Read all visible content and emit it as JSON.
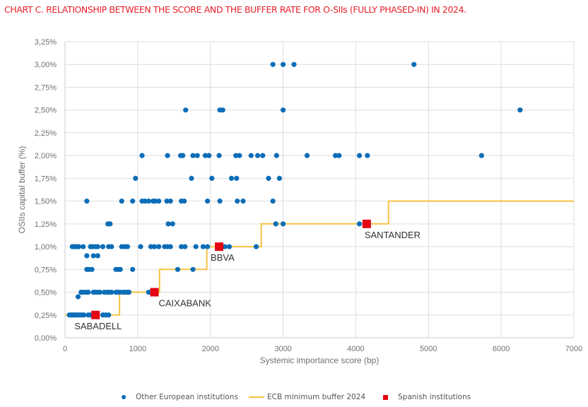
{
  "title": "CHART C. RELATIONSHIP BETWEEN THE SCORE AND THE BUFFER RATE FOR O-SIIs (FULLY PHASED-IN) IN 2024.",
  "colors": {
    "title": "#e8202a",
    "other": "#0b6db7",
    "ecb": "#f5c242",
    "spanish": "#e40613",
    "grid": "#dddddd"
  },
  "legend": {
    "other": "Other European institutions",
    "ecb": "ECB minimum buffer 2024",
    "spanish": "Spanish institutions"
  },
  "chart_data": {
    "type": "scatter",
    "title": "CHART C. RELATIONSHIP BETWEEN THE SCORE AND THE BUFFER RATE FOR O-SIIs (FULLY PHASED-IN) IN 2024.",
    "xlabel": "Systemic importance score (bp)",
    "ylabel": "OSIIs capital buffer (%)",
    "xlim": [
      0,
      7000
    ],
    "ylim": [
      0,
      3.25
    ],
    "x_ticks": [
      0,
      1000,
      2000,
      3000,
      4000,
      5000,
      6000,
      7000
    ],
    "x_tick_labels": [
      "0",
      "1000",
      "2000",
      "3000",
      "4000",
      "5000",
      "6000",
      "7000"
    ],
    "y_ticks": [
      0,
      0.25,
      0.5,
      0.75,
      1.0,
      1.25,
      1.5,
      1.75,
      2.0,
      2.25,
      2.5,
      2.75,
      3.0,
      3.25
    ],
    "y_tick_labels": [
      "0,00%",
      "0,25%",
      "0,50%",
      "0,75%",
      "1,00%",
      "1,25%",
      "1,50%",
      "1,75%",
      "2,00%",
      "2,25%",
      "2,50%",
      "2,75%",
      "3,00%",
      "3,25%"
    ],
    "grid": true,
    "legend_position": "bottom",
    "series": [
      {
        "name": "Other European institutions",
        "marker": "circle",
        "points": [
          [
            60,
            0.25
          ],
          [
            90,
            0.25
          ],
          [
            110,
            0.25
          ],
          [
            130,
            0.25
          ],
          [
            150,
            0.25
          ],
          [
            170,
            0.25
          ],
          [
            200,
            0.25
          ],
          [
            230,
            0.25
          ],
          [
            260,
            0.25
          ],
          [
            320,
            0.25
          ],
          [
            350,
            0.25
          ],
          [
            520,
            0.25
          ],
          [
            560,
            0.25
          ],
          [
            600,
            0.25
          ],
          [
            180,
            0.45
          ],
          [
            220,
            0.5
          ],
          [
            250,
            0.5
          ],
          [
            290,
            0.5
          ],
          [
            320,
            0.5
          ],
          [
            390,
            0.5
          ],
          [
            420,
            0.5
          ],
          [
            450,
            0.5
          ],
          [
            480,
            0.5
          ],
          [
            540,
            0.5
          ],
          [
            580,
            0.5
          ],
          [
            610,
            0.5
          ],
          [
            640,
            0.5
          ],
          [
            700,
            0.5
          ],
          [
            730,
            0.5
          ],
          [
            760,
            0.5
          ],
          [
            800,
            0.5
          ],
          [
            830,
            0.5
          ],
          [
            860,
            0.5
          ],
          [
            880,
            0.5
          ],
          [
            1150,
            0.5
          ],
          [
            300,
            0.75
          ],
          [
            330,
            0.75
          ],
          [
            370,
            0.75
          ],
          [
            700,
            0.75
          ],
          [
            730,
            0.75
          ],
          [
            760,
            0.75
          ],
          [
            930,
            0.75
          ],
          [
            1550,
            0.75
          ],
          [
            1760,
            0.75
          ],
          [
            300,
            0.9
          ],
          [
            390,
            0.9
          ],
          [
            450,
            0.9
          ],
          [
            100,
            1.0
          ],
          [
            120,
            1.0
          ],
          [
            140,
            1.0
          ],
          [
            160,
            1.0
          ],
          [
            190,
            1.0
          ],
          [
            250,
            1.0
          ],
          [
            350,
            1.0
          ],
          [
            380,
            1.0
          ],
          [
            420,
            1.0
          ],
          [
            450,
            1.0
          ],
          [
            520,
            1.0
          ],
          [
            600,
            1.0
          ],
          [
            640,
            1.0
          ],
          [
            780,
            1.0
          ],
          [
            820,
            1.0
          ],
          [
            860,
            1.0
          ],
          [
            1040,
            1.0
          ],
          [
            1180,
            1.0
          ],
          [
            1230,
            1.0
          ],
          [
            1290,
            1.0
          ],
          [
            1370,
            1.0
          ],
          [
            1410,
            1.0
          ],
          [
            1450,
            1.0
          ],
          [
            1600,
            1.0
          ],
          [
            1650,
            1.0
          ],
          [
            1800,
            1.0
          ],
          [
            1900,
            1.0
          ],
          [
            1960,
            1.0
          ],
          [
            2200,
            1.0
          ],
          [
            2260,
            1.0
          ],
          [
            2630,
            1.0
          ],
          [
            590,
            1.25
          ],
          [
            620,
            1.25
          ],
          [
            1420,
            1.25
          ],
          [
            1480,
            1.25
          ],
          [
            2900,
            1.25
          ],
          [
            3000,
            1.25
          ],
          [
            4050,
            1.25
          ],
          [
            300,
            1.5
          ],
          [
            780,
            1.5
          ],
          [
            930,
            1.5
          ],
          [
            1060,
            1.5
          ],
          [
            1100,
            1.5
          ],
          [
            1150,
            1.5
          ],
          [
            1210,
            1.5
          ],
          [
            1240,
            1.5
          ],
          [
            1290,
            1.5
          ],
          [
            1400,
            1.5
          ],
          [
            1450,
            1.5
          ],
          [
            1600,
            1.5
          ],
          [
            1640,
            1.5
          ],
          [
            1960,
            1.5
          ],
          [
            2130,
            1.5
          ],
          [
            2370,
            1.5
          ],
          [
            2450,
            1.5
          ],
          [
            2860,
            1.5
          ],
          [
            970,
            1.75
          ],
          [
            1740,
            1.75
          ],
          [
            2020,
            1.75
          ],
          [
            2290,
            1.75
          ],
          [
            2360,
            1.75
          ],
          [
            2800,
            1.75
          ],
          [
            2950,
            1.75
          ],
          [
            1060,
            2.0
          ],
          [
            1410,
            2.0
          ],
          [
            1590,
            2.0
          ],
          [
            1620,
            2.0
          ],
          [
            1760,
            2.0
          ],
          [
            1820,
            2.0
          ],
          [
            1930,
            2.0
          ],
          [
            1980,
            2.0
          ],
          [
            2120,
            2.0
          ],
          [
            2350,
            2.0
          ],
          [
            2400,
            2.0
          ],
          [
            2560,
            2.0
          ],
          [
            2650,
            2.0
          ],
          [
            2720,
            2.0
          ],
          [
            2910,
            2.0
          ],
          [
            3330,
            2.0
          ],
          [
            3720,
            2.0
          ],
          [
            3770,
            2.0
          ],
          [
            4050,
            2.0
          ],
          [
            4160,
            2.0
          ],
          [
            5730,
            2.0
          ],
          [
            1660,
            2.5
          ],
          [
            2130,
            2.5
          ],
          [
            2170,
            2.5
          ],
          [
            3000,
            2.5
          ],
          [
            6260,
            2.5
          ],
          [
            2860,
            3.0
          ],
          [
            3000,
            3.0
          ],
          [
            3150,
            3.0
          ],
          [
            4800,
            3.0
          ]
        ]
      },
      {
        "name": "ECB minimum buffer 2024",
        "type": "step",
        "points": [
          [
            0,
            0.25
          ],
          [
            750,
            0.25
          ],
          [
            750,
            0.5
          ],
          [
            1300,
            0.5
          ],
          [
            1300,
            0.75
          ],
          [
            1950,
            0.75
          ],
          [
            1950,
            1.0
          ],
          [
            2700,
            1.0
          ],
          [
            2700,
            1.25
          ],
          [
            4450,
            1.25
          ],
          [
            4450,
            1.5
          ],
          [
            7000,
            1.5
          ]
        ]
      },
      {
        "name": "Spanish institutions",
        "marker": "square",
        "points": [
          {
            "label": "SABADELL",
            "x": 420,
            "y": 0.25
          },
          {
            "label": "CAIXABANK",
            "x": 1230,
            "y": 0.5
          },
          {
            "label": "BBVA",
            "x": 2120,
            "y": 1.0
          },
          {
            "label": "SANTANDER",
            "x": 4150,
            "y": 1.25
          }
        ]
      }
    ]
  }
}
